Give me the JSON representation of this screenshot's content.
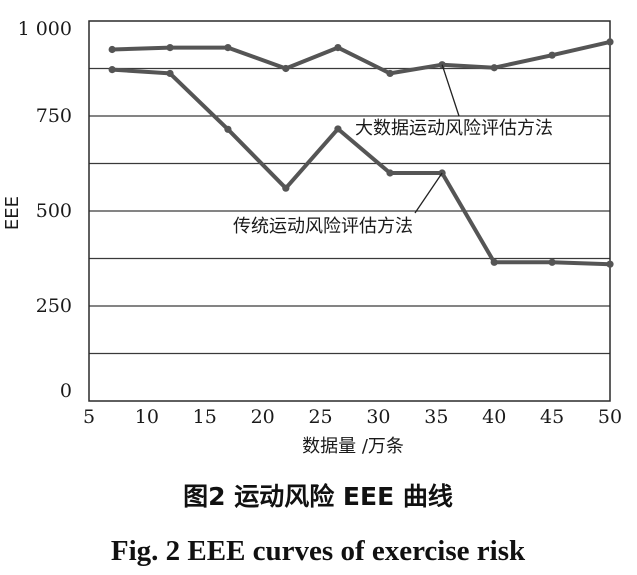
{
  "chart_data": {
    "type": "line",
    "xlabel": "数据量 /万条",
    "ylabel": "EEE",
    "xlim": [
      5,
      50
    ],
    "ylim": [
      0,
      1000
    ],
    "x_ticks": [
      5,
      10,
      15,
      20,
      25,
      30,
      35,
      40,
      45,
      50
    ],
    "x_tick_labels": [
      "5",
      "10",
      "15",
      "20",
      "25",
      "30",
      "35",
      "40",
      "45",
      "50"
    ],
    "y_ticks": [
      0,
      250,
      500,
      750,
      1000
    ],
    "y_tick_labels": [
      "0",
      "250",
      "500",
      "750",
      "1 000"
    ],
    "gridlines_y": [
      125,
      250,
      375,
      500,
      625,
      750,
      875
    ],
    "series": [
      {
        "name": "大数据运动风险评估方法",
        "color": "#555555",
        "points": [
          [
            7,
            925
          ],
          [
            12,
            930
          ],
          [
            17,
            930
          ],
          [
            22,
            875
          ],
          [
            26.5,
            930
          ],
          [
            31,
            862
          ],
          [
            35.5,
            885
          ],
          [
            40,
            877
          ],
          [
            45,
            910
          ],
          [
            50,
            945
          ]
        ]
      },
      {
        "name": "传统运动风险评估方法",
        "color": "#555555",
        "points": [
          [
            7,
            872
          ],
          [
            12,
            862
          ],
          [
            17,
            715
          ],
          [
            22,
            560
          ],
          [
            26.5,
            716
          ],
          [
            31,
            600
          ],
          [
            35.5,
            600
          ],
          [
            40,
            365
          ],
          [
            45,
            365
          ],
          [
            50,
            360
          ]
        ]
      }
    ],
    "annotations": [
      {
        "text": "大数据运动风险评估方法",
        "series": 0,
        "point_x": 35.5
      },
      {
        "text": "传统运动风险评估方法",
        "series": 1,
        "point_x": 35.5
      }
    ]
  },
  "caption": {
    "zh": "图2  运动风险 EEE 曲线",
    "en": "Fig. 2  EEE curves of exercise risk"
  }
}
